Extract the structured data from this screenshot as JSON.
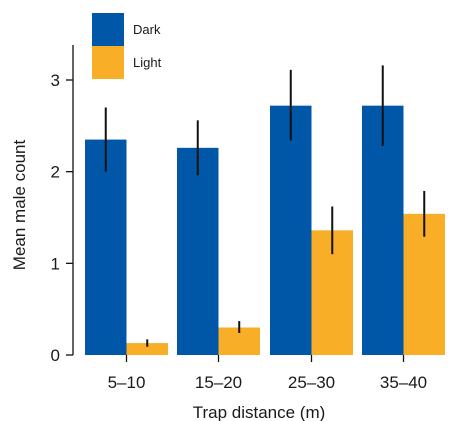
{
  "chart_data": {
    "type": "bar",
    "xlabel": "Trap distance (m)",
    "ylabel": "Mean male count",
    "categories": [
      "5–10",
      "15–20",
      "25–30",
      "35–40"
    ],
    "ylim": [
      0,
      3.3
    ],
    "yticks": [
      0,
      1,
      2,
      3
    ],
    "grid": false,
    "legend": {
      "placement": "top-left"
    },
    "error_bars": true,
    "series": [
      {
        "name": "Dark",
        "color": "#0057a8",
        "values": [
          2.35,
          2.26,
          2.72,
          2.72
        ],
        "err_low": [
          2.0,
          1.96,
          2.34,
          2.28
        ],
        "err_high": [
          2.7,
          2.56,
          3.11,
          3.16
        ]
      },
      {
        "name": "Light",
        "color": "#f9ae27",
        "values": [
          0.13,
          0.3,
          1.36,
          1.54
        ],
        "err_low": [
          0.09,
          0.24,
          1.1,
          1.29
        ],
        "err_high": [
          0.17,
          0.37,
          1.62,
          1.79
        ]
      }
    ]
  }
}
